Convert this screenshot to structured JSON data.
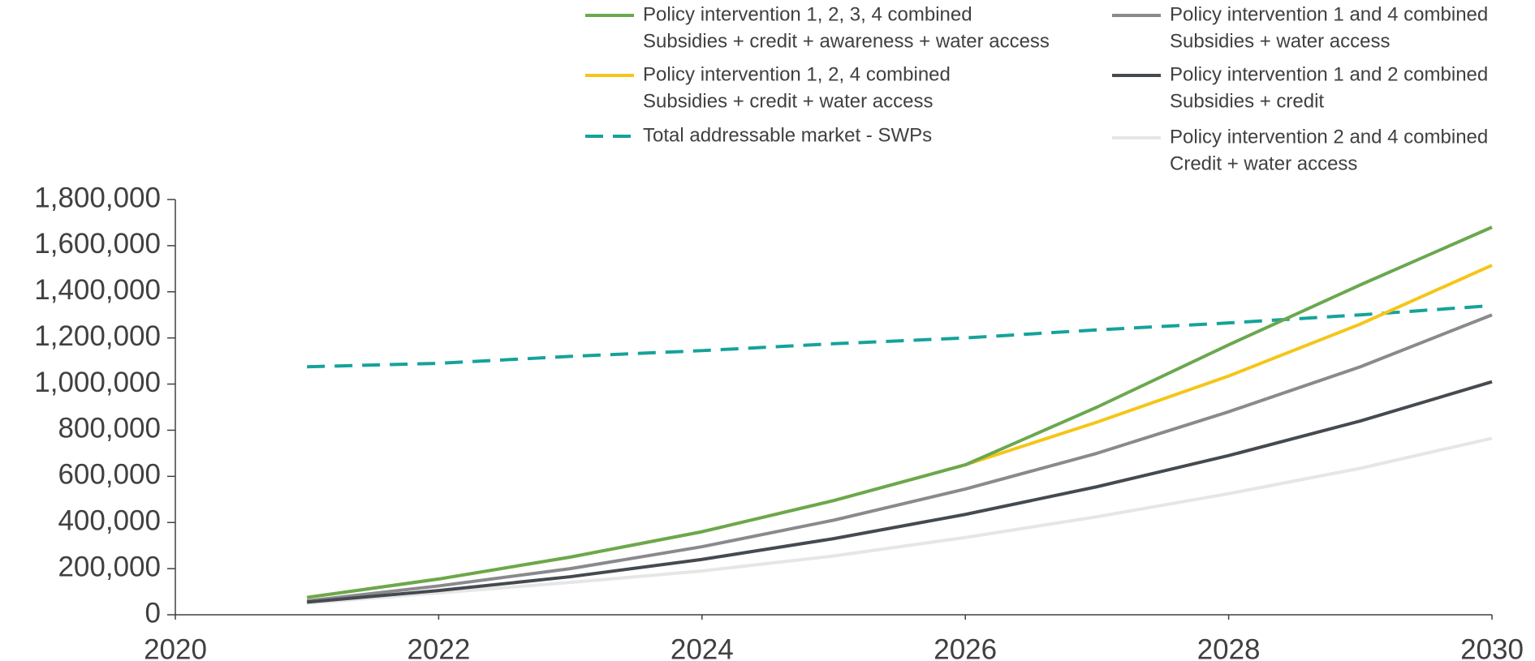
{
  "chart_data": {
    "type": "line",
    "x": [
      2021,
      2022,
      2023,
      2024,
      2025,
      2026,
      2027,
      2028,
      2029,
      2030
    ],
    "series": [
      {
        "name": "Policy intervention 1, 2, 3, 4 combined",
        "description": "Subsidies + credit + awareness + water access",
        "color": "#6aa84f",
        "dash": false,
        "values": [
          75000,
          155000,
          250000,
          360000,
          495000,
          650000,
          900000,
          1170000,
          1430000,
          1680000
        ]
      },
      {
        "name": "Policy intervention 1 and 4 combined",
        "description": "Subsidies + water access",
        "color": "#8a8a8e",
        "dash": false,
        "values": [
          60000,
          125000,
          200000,
          295000,
          410000,
          545000,
          700000,
          880000,
          1075000,
          1300000
        ]
      },
      {
        "name": "Policy intervention 1, 2, 4 combined",
        "description": "Subsidies + credit + water access",
        "color": "#f5c518",
        "dash": false,
        "values": [
          75000,
          155000,
          250000,
          360000,
          495000,
          650000,
          835000,
          1035000,
          1260000,
          1515000
        ]
      },
      {
        "name": "Policy intervention 1 and 2 combined",
        "description": "Subsidies + credit",
        "color": "#454a50",
        "dash": false,
        "values": [
          55000,
          105000,
          165000,
          240000,
          330000,
          435000,
          555000,
          690000,
          840000,
          1010000
        ]
      },
      {
        "name": "Total addressable market - SWPs",
        "color": "#14a39a",
        "dash": true,
        "values": [
          1075000,
          1090000,
          1120000,
          1145000,
          1175000,
          1200000,
          1235000,
          1265000,
          1300000,
          1340000
        ]
      },
      {
        "name": "Policy intervention 2 and 4 combined",
        "description": "Credit + water access",
        "color": "#e6e6e6",
        "dash": false,
        "values": [
          50000,
          95000,
          140000,
          190000,
          255000,
          335000,
          425000,
          525000,
          635000,
          765000
        ]
      }
    ],
    "xlim": [
      2020,
      2030
    ],
    "xticks": [
      2020,
      2022,
      2024,
      2026,
      2028,
      2030
    ],
    "ylim": [
      0,
      1800000
    ],
    "yticks": [
      0,
      {
        "value": 200000,
        "label": "200,000"
      },
      {
        "value": 400000,
        "label": "400,000"
      },
      {
        "value": 600000,
        "label": "600,000"
      },
      {
        "value": 800000,
        "label": "800,000"
      },
      {
        "value": 1000000,
        "label": "1,000,000"
      },
      {
        "value": 1200000,
        "label": "1,200,000"
      },
      {
        "value": 1400000,
        "label": "1,400,000"
      },
      {
        "value": 1600000,
        "label": "1,600,000"
      },
      {
        "value": 1800000,
        "label": "1,800,000"
      }
    ]
  }
}
